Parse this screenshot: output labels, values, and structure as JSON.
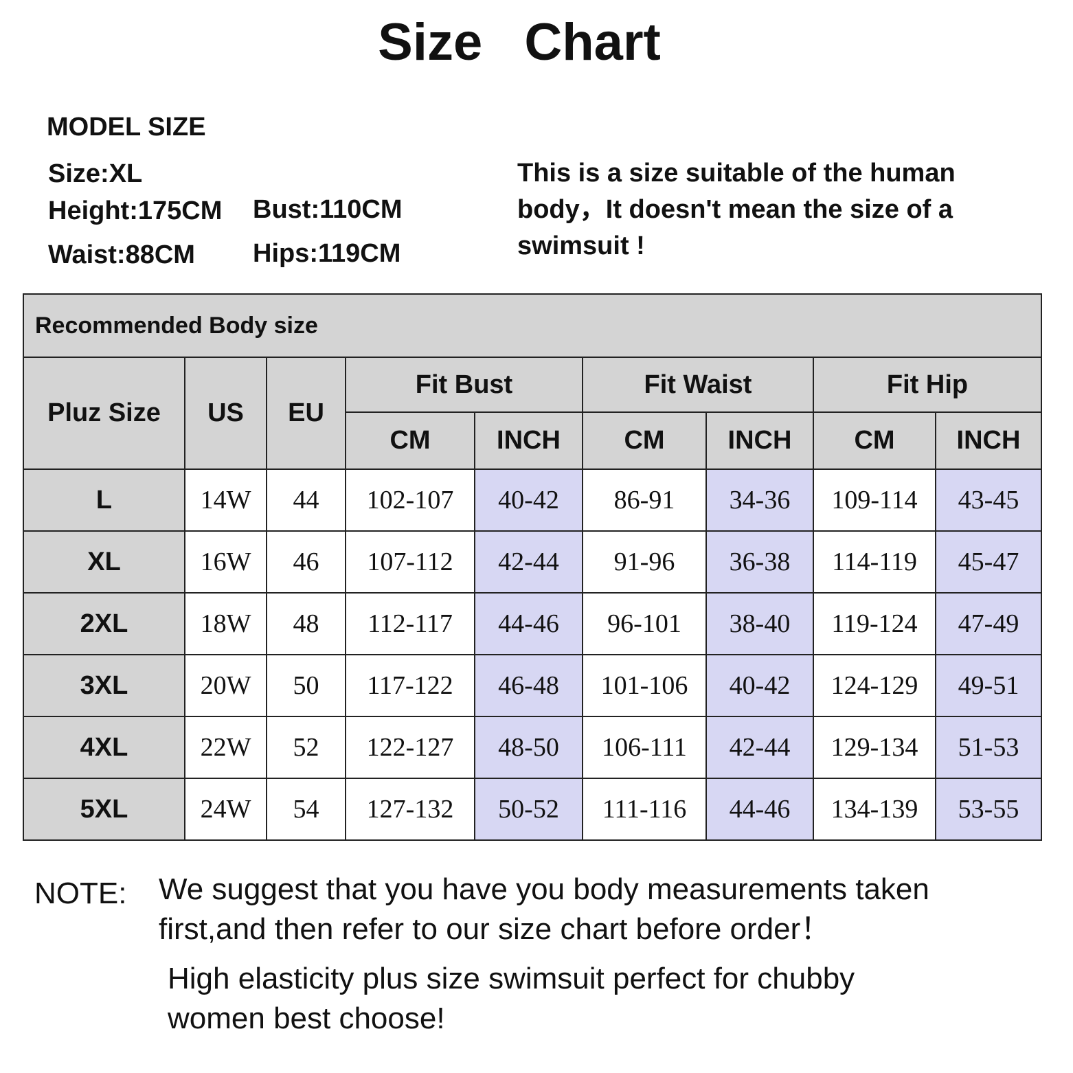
{
  "title": "Size   Chart",
  "model": {
    "heading": "MODEL    SIZE",
    "size": "Size:XL",
    "height": "Height:175CM",
    "bust": "Bust:110CM",
    "waist": "Waist:88CM",
    "hips": "Hips:119CM"
  },
  "disclaimer": "This is a size suitable of the human body，It doesn't mean the size of a swimsuit !",
  "table": {
    "title": "Recommended Body size",
    "headers": {
      "size": "Pluz Size",
      "us": "US",
      "eu": "EU",
      "bust": "Fit  Bust",
      "waist": "Fit  Waist",
      "hip": "Fit  Hip",
      "cm": "CM",
      "inch": "INCH"
    },
    "rows": [
      [
        "L",
        "14W",
        "44",
        "102-107",
        "40-42",
        "86-91",
        "34-36",
        "109-114",
        "43-45"
      ],
      [
        "XL",
        "16W",
        "46",
        "107-112",
        "42-44",
        "91-96",
        "36-38",
        "114-119",
        "45-47"
      ],
      [
        "2XL",
        "18W",
        "48",
        "112-117",
        "44-46",
        "96-101",
        "38-40",
        "119-124",
        "47-49"
      ],
      [
        "3XL",
        "20W",
        "50",
        "117-122",
        "46-48",
        "101-106",
        "40-42",
        "124-129",
        "49-51"
      ],
      [
        "4XL",
        "22W",
        "52",
        "122-127",
        "48-50",
        "106-111",
        "42-44",
        "129-134",
        "51-53"
      ],
      [
        "5XL",
        "24W",
        "54",
        "127-132",
        "50-52",
        "111-116",
        "44-46",
        "134-139",
        "53-55"
      ]
    ]
  },
  "note": {
    "label": "NOTE:",
    "line1": "We suggest that you have you body measurements taken",
    "line2": "first,and then refer to our size chart before order！",
    "line3": "High elasticity plus size swimsuit perfect for chubby",
    "line4": "women best choose!"
  },
  "colors": {
    "header_gray": "#d4d4d4",
    "inch_highlight": "#d7d7f3"
  }
}
